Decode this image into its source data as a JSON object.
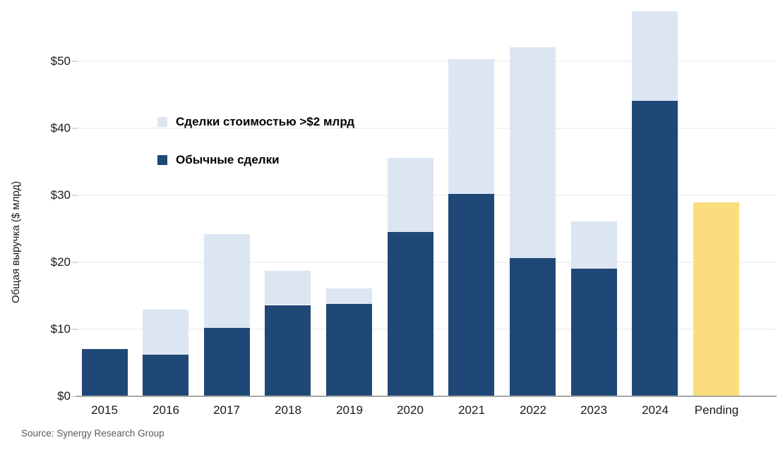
{
  "chart_data": {
    "type": "bar",
    "stacked": true,
    "title": "",
    "categories": [
      "2015",
      "2016",
      "2017",
      "2018",
      "2019",
      "2020",
      "2021",
      "2022",
      "2023",
      "2024",
      "Pending"
    ],
    "series": [
      {
        "name": "Обычные сделки",
        "color": "#1f4877",
        "values": [
          7.1,
          6.2,
          10.2,
          13.6,
          13.8,
          24.5,
          30.2,
          20.6,
          19.1,
          44.1,
          0
        ]
      },
      {
        "name": "Сделки стоимостью >$2 млрд",
        "color": "#dce6f2",
        "values": [
          0,
          6.7,
          14.0,
          5.1,
          2.3,
          11.1,
          20.1,
          31.5,
          7.0,
          13.4,
          0
        ]
      },
      {
        "name": "Pending",
        "color": "#fadd7d",
        "values": [
          0,
          0,
          0,
          0,
          0,
          0,
          0,
          0,
          0,
          0,
          29.0
        ]
      }
    ],
    "totals": [
      7.1,
      12.9,
      24.2,
      18.7,
      16.1,
      35.6,
      50.3,
      52.1,
      26.1,
      57.5,
      29.0
    ],
    "xlabel": "",
    "ylabel": "Общая выручка ($ млрд)",
    "ytick_labels": [
      "$0",
      "$10",
      "$20",
      "$30",
      "$40",
      "$50"
    ],
    "ytick_values": [
      0,
      10,
      20,
      30,
      40,
      50
    ],
    "ylim": [
      0,
      60.5
    ],
    "grid": true,
    "legend_position": "inside-upper-left"
  },
  "legend": {
    "items": [
      {
        "label": "Сделки стоимостью >$2 млрд",
        "color": "#dce6f2"
      },
      {
        "label": "Обычные сделки",
        "color": "#1f4877"
      }
    ]
  },
  "source": {
    "label": "Source: Synergy Research Group"
  },
  "colors": {
    "bar_regular": "#1f4877",
    "bar_large_deal": "#dce6f2",
    "bar_pending": "#fadd7d",
    "gridline": "#f2f2f2",
    "axis_line": "#a6a6a6",
    "text": "#1a1a1a",
    "source_text": "#595959",
    "background": "#ffffff"
  }
}
